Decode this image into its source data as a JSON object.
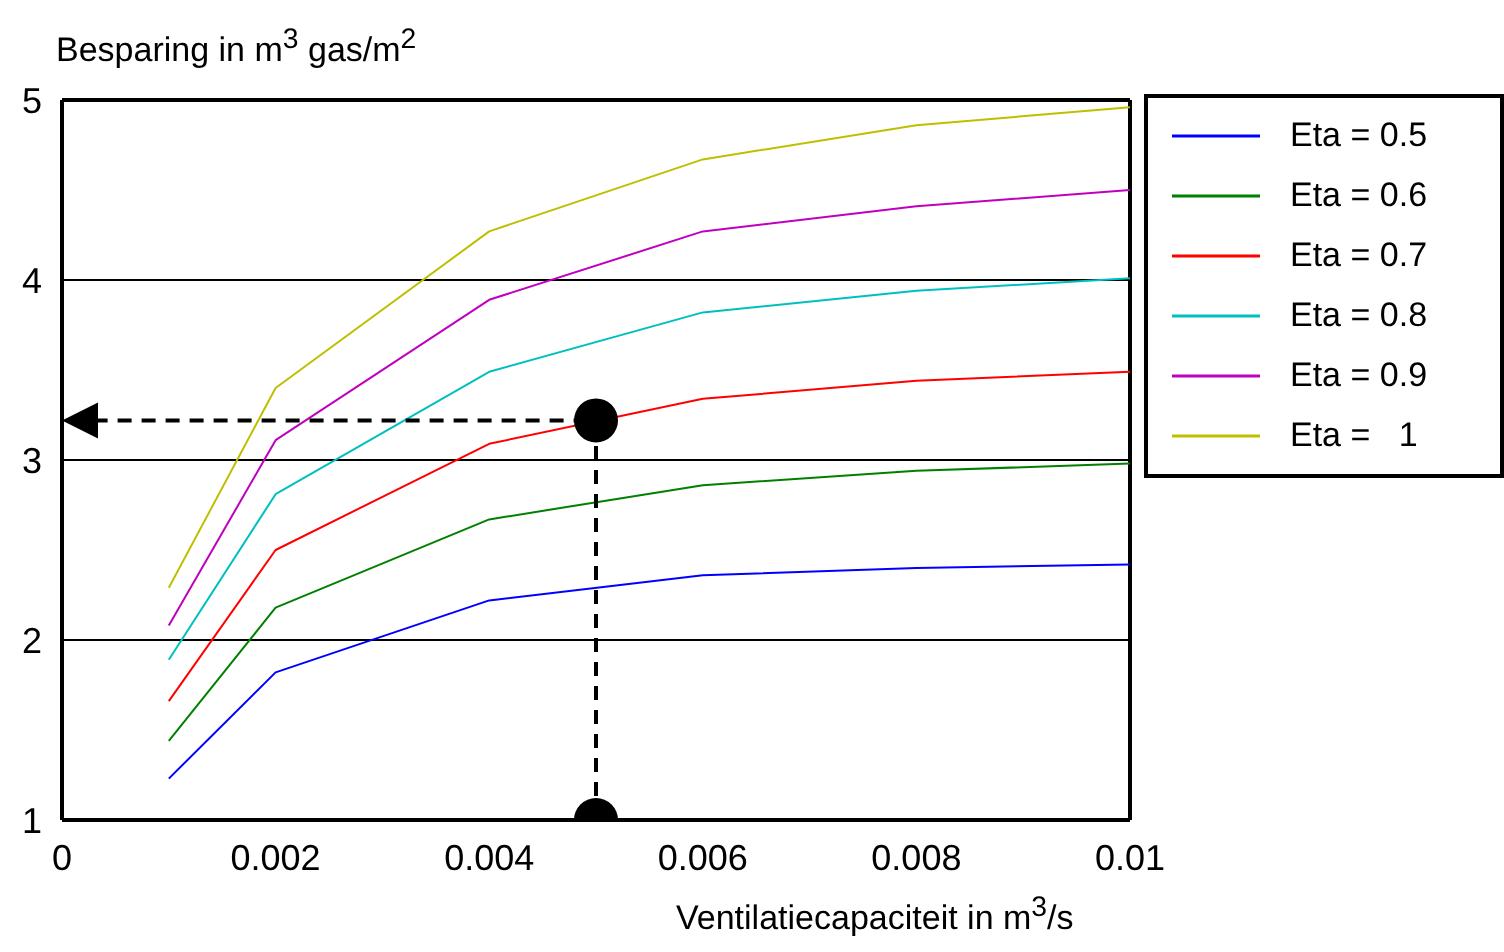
{
  "chart_data": {
    "type": "line",
    "xlabel": "Ventilatiecapaciteit in m$^{3}$/s",
    "ylabel": "Besparing in m$^{3}$ gas/m$^{2}$",
    "x": [
      0.001,
      0.002,
      0.004,
      0.006,
      0.008,
      0.01
    ],
    "series": [
      {
        "name": "Eta = 0.5",
        "color": "#0000ff",
        "values": [
          1.23,
          1.82,
          2.22,
          2.36,
          2.4,
          2.42
        ]
      },
      {
        "name": "Eta = 0.6",
        "color": "#008000",
        "values": [
          1.44,
          2.18,
          2.67,
          2.86,
          2.94,
          2.98
        ]
      },
      {
        "name": "Eta = 0.7",
        "color": "#ff0000",
        "values": [
          1.66,
          2.5,
          3.09,
          3.34,
          3.44,
          3.49
        ]
      },
      {
        "name": "Eta = 0.8",
        "color": "#00bfbf",
        "values": [
          1.89,
          2.81,
          3.49,
          3.82,
          3.94,
          4.01
        ]
      },
      {
        "name": "Eta = 0.9",
        "color": "#bf00bf",
        "values": [
          2.08,
          3.11,
          3.89,
          4.27,
          4.41,
          4.5
        ]
      },
      {
        "name": "Eta =   1",
        "color": "#bfbf00",
        "values": [
          2.29,
          3.4,
          4.27,
          4.67,
          4.86,
          4.96
        ]
      },
      {
        "type": "scatter",
        "marker": "circle",
        "color": "#000000",
        "x": [
          0.005,
          0.005
        ],
        "values": [
          3.22,
          1
        ]
      }
    ],
    "xlim": [
      0,
      0.01
    ],
    "xticks": [
      0,
      0.002,
      0.004,
      0.006,
      0.008,
      0.01
    ],
    "ylim": [
      1,
      5
    ],
    "yticks": [
      1,
      2,
      3,
      4,
      5
    ],
    "grid": "y",
    "legend": "top right",
    "marker": "none",
    "line_style": "solid"
  }
}
